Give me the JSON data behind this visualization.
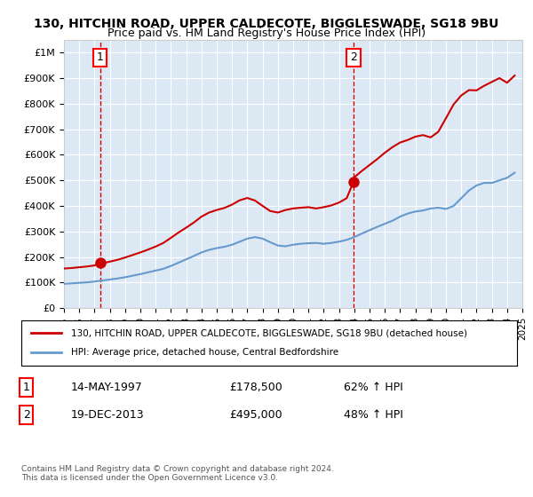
{
  "title": "130, HITCHIN ROAD, UPPER CALDECOTE, BIGGLESWADE, SG18 9BU",
  "subtitle": "Price paid vs. HM Land Registry's House Price Index (HPI)",
  "years_start": 1995,
  "years_end": 2025,
  "ylim": [
    0,
    1050000
  ],
  "yticks": [
    0,
    100000,
    200000,
    300000,
    400000,
    500000,
    600000,
    700000,
    800000,
    900000,
    1000000
  ],
  "ytick_labels": [
    "£0",
    "£100K",
    "£200K",
    "£300K",
    "£400K",
    "£500K",
    "£600K",
    "£700K",
    "£800K",
    "£900K",
    "£1M"
  ],
  "xtick_years": [
    1995,
    1996,
    1997,
    1998,
    1999,
    2000,
    2001,
    2002,
    2003,
    2004,
    2005,
    2006,
    2007,
    2008,
    2009,
    2010,
    2011,
    2012,
    2013,
    2014,
    2015,
    2016,
    2017,
    2018,
    2019,
    2020,
    2021,
    2022,
    2023,
    2024,
    2025
  ],
  "sale1_year": 1997.37,
  "sale1_price": 178500,
  "sale1_label": "1",
  "sale2_year": 2013.96,
  "sale2_price": 495000,
  "sale2_label": "2",
  "red_line_color": "#cc0000",
  "blue_line_color": "#6699cc",
  "dot_color": "#cc0000",
  "dashed_color": "#cc0000",
  "background_color": "#dce9f5",
  "plot_bg_color": "#dce9f5",
  "legend_line1": "130, HITCHIN ROAD, UPPER CALDECOTE, BIGGLESWADE, SG18 9BU (detached house)",
  "legend_line2": "HPI: Average price, detached house, Central Bedfordshire",
  "table_row1_num": "1",
  "table_row1_date": "14-MAY-1997",
  "table_row1_price": "£178,500",
  "table_row1_hpi": "62% ↑ HPI",
  "table_row2_num": "2",
  "table_row2_date": "19-DEC-2013",
  "table_row2_price": "£495,000",
  "table_row2_hpi": "48% ↑ HPI",
  "footer": "Contains HM Land Registry data © Crown copyright and database right 2024.\nThis data is licensed under the Open Government Licence v3.0.",
  "hpi_x": [
    1995,
    1995.5,
    1996,
    1996.5,
    1997,
    1997.5,
    1998,
    1998.5,
    1999,
    1999.5,
    2000,
    2000.5,
    2001,
    2001.5,
    2002,
    2002.5,
    2003,
    2003.5,
    2004,
    2004.5,
    2005,
    2005.5,
    2006,
    2006.5,
    2007,
    2007.5,
    2008,
    2008.5,
    2009,
    2009.5,
    2010,
    2010.5,
    2011,
    2011.5,
    2012,
    2012.5,
    2013,
    2013.5,
    2014,
    2014.5,
    2015,
    2015.5,
    2016,
    2016.5,
    2017,
    2017.5,
    2018,
    2018.5,
    2019,
    2019.5,
    2020,
    2020.5,
    2021,
    2021.5,
    2022,
    2022.5,
    2023,
    2023.5,
    2024,
    2024.5
  ],
  "hpi_y": [
    95000,
    97000,
    99000,
    101000,
    104000,
    108000,
    112000,
    116000,
    121000,
    127000,
    133000,
    140000,
    147000,
    154000,
    165000,
    178000,
    191000,
    204000,
    218000,
    228000,
    235000,
    240000,
    248000,
    260000,
    272000,
    278000,
    272000,
    258000,
    245000,
    242000,
    248000,
    252000,
    254000,
    255000,
    252000,
    255000,
    260000,
    267000,
    278000,
    292000,
    305000,
    318000,
    330000,
    342000,
    358000,
    370000,
    378000,
    382000,
    390000,
    393000,
    388000,
    400000,
    430000,
    460000,
    480000,
    490000,
    490000,
    500000,
    510000,
    530000
  ],
  "red_x": [
    1995,
    1995.5,
    1996,
    1996.5,
    1997,
    1997.37,
    1997.5,
    1998,
    1998.5,
    1999,
    1999.5,
    2000,
    2000.5,
    2001,
    2001.5,
    2002,
    2002.5,
    2003,
    2003.5,
    2004,
    2004.5,
    2005,
    2005.5,
    2006,
    2006.5,
    2007,
    2007.5,
    2008,
    2008.5,
    2009,
    2009.5,
    2010,
    2010.5,
    2011,
    2011.5,
    2012,
    2012.5,
    2013,
    2013.5,
    2013.96,
    2014,
    2014.5,
    2015,
    2015.5,
    2016,
    2016.5,
    2017,
    2017.5,
    2018,
    2018.5,
    2019,
    2019.5,
    2020,
    2020.5,
    2021,
    2021.5,
    2022,
    2022.5,
    2023,
    2023.5,
    2024,
    2024.5
  ],
  "red_y": [
    155000,
    157000,
    160000,
    163000,
    167000,
    178500,
    175000,
    182000,
    189000,
    198000,
    208000,
    218000,
    229000,
    241000,
    255000,
    275000,
    296000,
    315000,
    335000,
    358000,
    374000,
    384000,
    392000,
    405000,
    422000,
    431000,
    421000,
    400000,
    380000,
    374000,
    384000,
    390000,
    393000,
    395000,
    390000,
    395000,
    402000,
    413000,
    430000,
    495000,
    512000,
    537000,
    560000,
    583000,
    608000,
    630000,
    648000,
    658000,
    671000,
    677000,
    668000,
    690000,
    743000,
    797000,
    832000,
    853000,
    852000,
    870000,
    885000,
    900000,
    882000,
    910000
  ]
}
